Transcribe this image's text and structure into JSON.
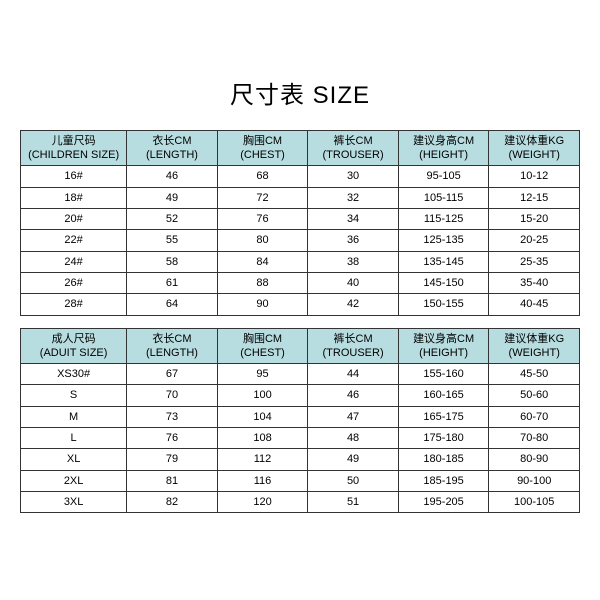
{
  "title": "尺寸表 SIZE",
  "header_bg": "#b8dde0",
  "border_color": "#333333",
  "children_table": {
    "columns": [
      {
        "cn": "儿童尺码",
        "en": "(CHILDREN SIZE)"
      },
      {
        "cn": "衣长CM",
        "en": "(LENGTH)"
      },
      {
        "cn": "胸围CM",
        "en": "(CHEST)"
      },
      {
        "cn": "裤长CM",
        "en": "(TROUSER)"
      },
      {
        "cn": "建议身高CM",
        "en": "(HEIGHT)"
      },
      {
        "cn": "建议体重KG",
        "en": "(WEIGHT)"
      }
    ],
    "rows": [
      [
        "16#",
        "46",
        "68",
        "30",
        "95-105",
        "10-12"
      ],
      [
        "18#",
        "49",
        "72",
        "32",
        "105-115",
        "12-15"
      ],
      [
        "20#",
        "52",
        "76",
        "34",
        "115-125",
        "15-20"
      ],
      [
        "22#",
        "55",
        "80",
        "36",
        "125-135",
        "20-25"
      ],
      [
        "24#",
        "58",
        "84",
        "38",
        "135-145",
        "25-35"
      ],
      [
        "26#",
        "61",
        "88",
        "40",
        "145-150",
        "35-40"
      ],
      [
        "28#",
        "64",
        "90",
        "42",
        "150-155",
        "40-45"
      ]
    ]
  },
  "adult_table": {
    "columns": [
      {
        "cn": "成人尺码",
        "en": "(ADUIT SIZE)"
      },
      {
        "cn": "衣长CM",
        "en": "(LENGTH)"
      },
      {
        "cn": "胸围CM",
        "en": "(CHEST)"
      },
      {
        "cn": "裤长CM",
        "en": "(TROUSER)"
      },
      {
        "cn": "建议身高CM",
        "en": "(HEIGHT)"
      },
      {
        "cn": "建议体重KG",
        "en": "(WEIGHT)"
      }
    ],
    "rows": [
      [
        "XS30#",
        "67",
        "95",
        "44",
        "155-160",
        "45-50"
      ],
      [
        "S",
        "70",
        "100",
        "46",
        "160-165",
        "50-60"
      ],
      [
        "M",
        "73",
        "104",
        "47",
        "165-175",
        "60-70"
      ],
      [
        "L",
        "76",
        "108",
        "48",
        "175-180",
        "70-80"
      ],
      [
        "XL",
        "79",
        "112",
        "49",
        "180-185",
        "80-90"
      ],
      [
        "2XL",
        "81",
        "116",
        "50",
        "185-195",
        "90-100"
      ],
      [
        "3XL",
        "82",
        "120",
        "51",
        "195-205",
        "100-105"
      ]
    ]
  }
}
